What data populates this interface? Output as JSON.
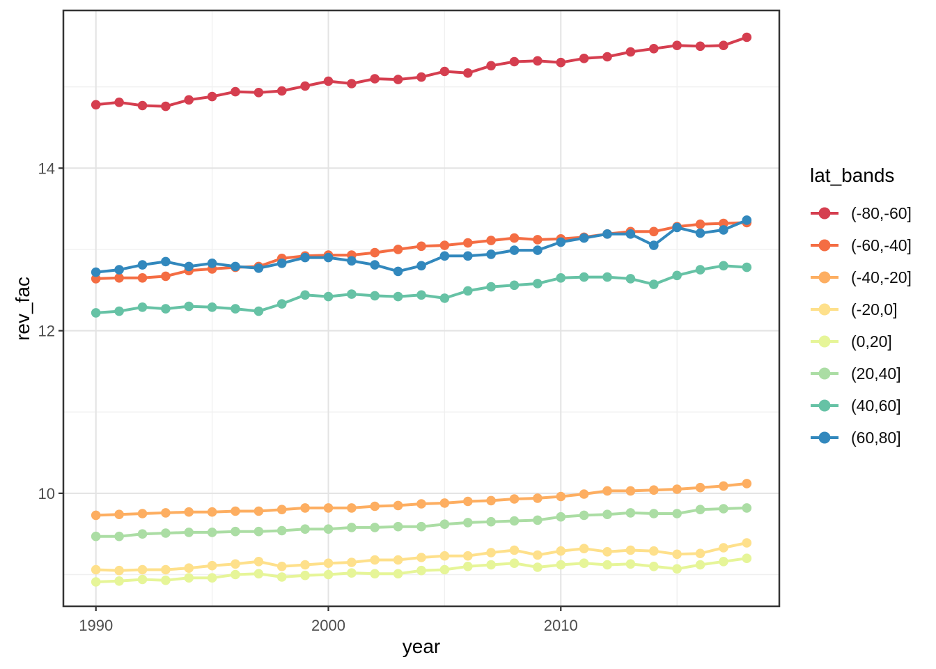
{
  "figure": {
    "xlabel": "year",
    "ylabel": "rev_fac",
    "legend_title": "lat_bands"
  },
  "chart_data": {
    "type": "line",
    "title": "",
    "xlabel": "year",
    "ylabel": "rev_fac",
    "legend_title": "lat_bands",
    "legend_position": "right",
    "grid": true,
    "marker": "point",
    "x_ticks": [
      1990,
      2000,
      2010
    ],
    "x_minor_gridlines": [
      1995,
      2005,
      2015
    ],
    "y_ticks": [
      10,
      12,
      14
    ],
    "y_minor_gridlines": [
      9,
      11,
      13,
      15
    ],
    "xlim": [
      1988.6,
      2019.4
    ],
    "ylim": [
      8.61,
      15.94
    ],
    "x": [
      1990,
      1991,
      1992,
      1993,
      1994,
      1995,
      1996,
      1997,
      1998,
      1999,
      2000,
      2001,
      2002,
      2003,
      2004,
      2005,
      2006,
      2007,
      2008,
      2009,
      2010,
      2011,
      2012,
      2013,
      2014,
      2015,
      2016,
      2017,
      2018
    ],
    "series": [
      {
        "name": "(-80,-60]",
        "color": "#d53e4f",
        "values": [
          14.78,
          14.81,
          14.77,
          14.76,
          14.84,
          14.88,
          14.94,
          14.93,
          14.95,
          15.01,
          15.07,
          15.04,
          15.1,
          15.09,
          15.12,
          15.19,
          15.17,
          15.26,
          15.31,
          15.32,
          15.3,
          15.35,
          15.37,
          15.43,
          15.47,
          15.51,
          15.5,
          15.51,
          15.61
        ]
      },
      {
        "name": "(-60,-40]",
        "color": "#f46d43",
        "values": [
          12.64,
          12.65,
          12.65,
          12.67,
          12.74,
          12.76,
          12.78,
          12.79,
          12.89,
          12.92,
          12.93,
          12.93,
          12.96,
          13.0,
          13.04,
          13.05,
          13.08,
          13.11,
          13.14,
          13.12,
          13.13,
          13.15,
          13.19,
          13.22,
          13.22,
          13.28,
          13.31,
          13.32,
          13.33
        ]
      },
      {
        "name": "(-40,-20]",
        "color": "#fdae61",
        "values": [
          9.73,
          9.74,
          9.75,
          9.76,
          9.77,
          9.77,
          9.78,
          9.78,
          9.8,
          9.82,
          9.82,
          9.82,
          9.84,
          9.85,
          9.87,
          9.88,
          9.9,
          9.91,
          9.93,
          9.94,
          9.96,
          9.99,
          10.03,
          10.03,
          10.04,
          10.05,
          10.07,
          10.09,
          10.12
        ]
      },
      {
        "name": "(-20,0]",
        "color": "#fee08b",
        "values": [
          9.06,
          9.05,
          9.06,
          9.06,
          9.08,
          9.11,
          9.13,
          9.16,
          9.1,
          9.12,
          9.14,
          9.15,
          9.18,
          9.18,
          9.21,
          9.23,
          9.23,
          9.27,
          9.3,
          9.24,
          9.29,
          9.32,
          9.28,
          9.3,
          9.29,
          9.25,
          9.26,
          9.33,
          9.39
        ]
      },
      {
        "name": "(0,20]",
        "color": "#e6f598",
        "values": [
          8.91,
          8.92,
          8.94,
          8.93,
          8.96,
          8.96,
          9.0,
          9.01,
          8.97,
          8.99,
          9.0,
          9.02,
          9.01,
          9.01,
          9.05,
          9.06,
          9.1,
          9.12,
          9.14,
          9.09,
          9.12,
          9.14,
          9.12,
          9.13,
          9.1,
          9.07,
          9.12,
          9.16,
          9.2
        ]
      },
      {
        "name": "(20,40]",
        "color": "#abdda4",
        "values": [
          9.47,
          9.47,
          9.5,
          9.51,
          9.52,
          9.52,
          9.53,
          9.53,
          9.54,
          9.56,
          9.56,
          9.58,
          9.58,
          9.59,
          9.59,
          9.62,
          9.64,
          9.65,
          9.66,
          9.67,
          9.71,
          9.73,
          9.74,
          9.76,
          9.75,
          9.75,
          9.8,
          9.81,
          9.82
        ]
      },
      {
        "name": "(40,60]",
        "color": "#66c2a5",
        "values": [
          12.22,
          12.24,
          12.29,
          12.27,
          12.3,
          12.29,
          12.27,
          12.24,
          12.33,
          12.44,
          12.42,
          12.45,
          12.43,
          12.42,
          12.44,
          12.4,
          12.49,
          12.54,
          12.56,
          12.58,
          12.65,
          12.66,
          12.66,
          12.64,
          12.57,
          12.68,
          12.75,
          12.8,
          12.78
        ]
      },
      {
        "name": "(60,80]",
        "color": "#3288bd",
        "values": [
          12.72,
          12.75,
          12.81,
          12.85,
          12.79,
          12.83,
          12.79,
          12.77,
          12.83,
          12.9,
          12.9,
          12.86,
          12.81,
          12.73,
          12.8,
          12.92,
          12.92,
          12.94,
          12.99,
          12.99,
          13.09,
          13.14,
          13.19,
          13.19,
          13.05,
          13.27,
          13.2,
          13.24,
          13.36
        ]
      }
    ]
  },
  "theme": {
    "panel_border": "#343434",
    "tick_color": "#343434",
    "major_grid": "#e3e3e3",
    "minor_grid": "#f0f0f0",
    "tick_text": "#4d4d4d",
    "title_text": "#000000"
  }
}
